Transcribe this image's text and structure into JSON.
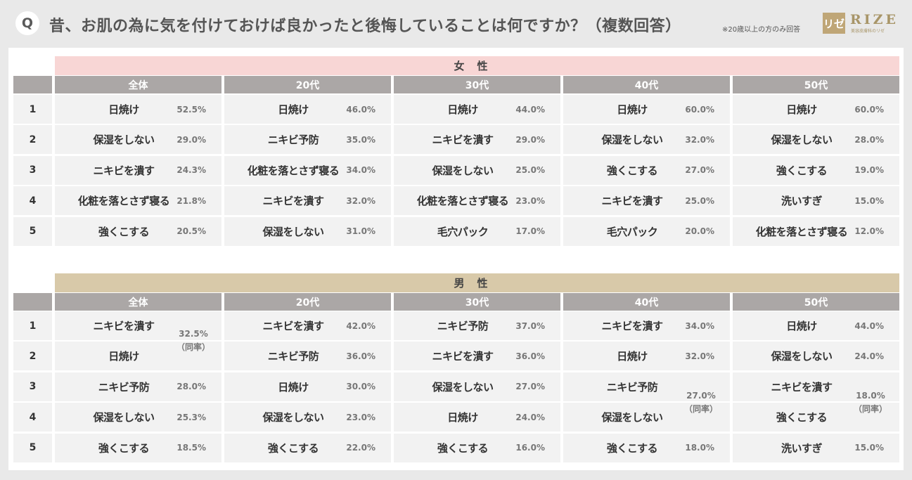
{
  "header": {
    "q_badge": "Q",
    "question": "昔、お肌の為に気を付けておけば良かったと後悔していることは何ですか？（複数回答）",
    "note": "※20歳以上の方のみ回答",
    "logo_mark": "リゼ",
    "logo_text": "RIZE",
    "logo_sub": "美容皮膚科のリゼ"
  },
  "columns": [
    "全体",
    "20代",
    "30代",
    "40代",
    "50代"
  ],
  "ranks": [
    "1",
    "2",
    "3",
    "4",
    "5"
  ],
  "tie_label": "（同率）",
  "female": {
    "title": "女性",
    "rows": [
      [
        {
          "label": "日焼け",
          "pct": "52.5%"
        },
        {
          "label": "日焼け",
          "pct": "46.0%"
        },
        {
          "label": "日焼け",
          "pct": "44.0%"
        },
        {
          "label": "日焼け",
          "pct": "60.0%"
        },
        {
          "label": "日焼け",
          "pct": "60.0%"
        }
      ],
      [
        {
          "label": "保湿をしない",
          "pct": "29.0%"
        },
        {
          "label": "ニキビ予防",
          "pct": "35.0%"
        },
        {
          "label": "ニキビを潰す",
          "pct": "29.0%"
        },
        {
          "label": "保湿をしない",
          "pct": "32.0%"
        },
        {
          "label": "保湿をしない",
          "pct": "28.0%"
        }
      ],
      [
        {
          "label": "ニキビを潰す",
          "pct": "24.3%"
        },
        {
          "label": "化粧を落とさず寝る",
          "pct": "34.0%"
        },
        {
          "label": "保湿をしない",
          "pct": "25.0%"
        },
        {
          "label": "強くこする",
          "pct": "27.0%"
        },
        {
          "label": "強くこする",
          "pct": "19.0%"
        }
      ],
      [
        {
          "label": "化粧を落とさず寝る",
          "pct": "21.8%"
        },
        {
          "label": "ニキビを潰す",
          "pct": "32.0%"
        },
        {
          "label": "化粧を落とさず寝る",
          "pct": "23.0%"
        },
        {
          "label": "ニキビを潰す",
          "pct": "25.0%"
        },
        {
          "label": "洗いすぎ",
          "pct": "15.0%"
        }
      ],
      [
        {
          "label": "強くこする",
          "pct": "20.5%"
        },
        {
          "label": "保湿をしない",
          "pct": "31.0%"
        },
        {
          "label": "毛穴パック",
          "pct": "17.0%"
        },
        {
          "label": "毛穴パック",
          "pct": "20.0%"
        },
        {
          "label": "化粧を落とさず寝る",
          "pct": "12.0%"
        }
      ]
    ]
  },
  "male": {
    "title": "男性",
    "rows": [
      [
        {
          "label": "ニキビを潰す",
          "pct": ""
        },
        {
          "label": "ニキビを潰す",
          "pct": "42.0%"
        },
        {
          "label": "ニキビ予防",
          "pct": "37.0%"
        },
        {
          "label": "ニキビを潰す",
          "pct": "34.0%"
        },
        {
          "label": "日焼け",
          "pct": "44.0%"
        }
      ],
      [
        {
          "label": "日焼け",
          "pct": ""
        },
        {
          "label": "ニキビ予防",
          "pct": "36.0%"
        },
        {
          "label": "ニキビを潰す",
          "pct": "36.0%"
        },
        {
          "label": "日焼け",
          "pct": "32.0%"
        },
        {
          "label": "保湿をしない",
          "pct": "24.0%"
        }
      ],
      [
        {
          "label": "ニキビ予防",
          "pct": "28.0%"
        },
        {
          "label": "日焼け",
          "pct": "30.0%"
        },
        {
          "label": "保湿をしない",
          "pct": "27.0%"
        },
        {
          "label": "ニキビ予防",
          "pct": ""
        },
        {
          "label": "ニキビを潰す",
          "pct": ""
        }
      ],
      [
        {
          "label": "保湿をしない",
          "pct": "25.3%"
        },
        {
          "label": "保湿をしない",
          "pct": "23.0%"
        },
        {
          "label": "日焼け",
          "pct": "24.0%"
        },
        {
          "label": "保湿をしない",
          "pct": ""
        },
        {
          "label": "強くこする",
          "pct": ""
        }
      ],
      [
        {
          "label": "強くこする",
          "pct": "18.5%"
        },
        {
          "label": "強くこする",
          "pct": "22.0%"
        },
        {
          "label": "強くこする",
          "pct": "16.0%"
        },
        {
          "label": "強くこする",
          "pct": "18.0%"
        },
        {
          "label": "洗いすぎ",
          "pct": "15.0%"
        }
      ]
    ],
    "ties": [
      {
        "pct": "32.5%"
      },
      {
        "pct": "27.0%"
      },
      {
        "pct": "18.0%"
      }
    ]
  }
}
